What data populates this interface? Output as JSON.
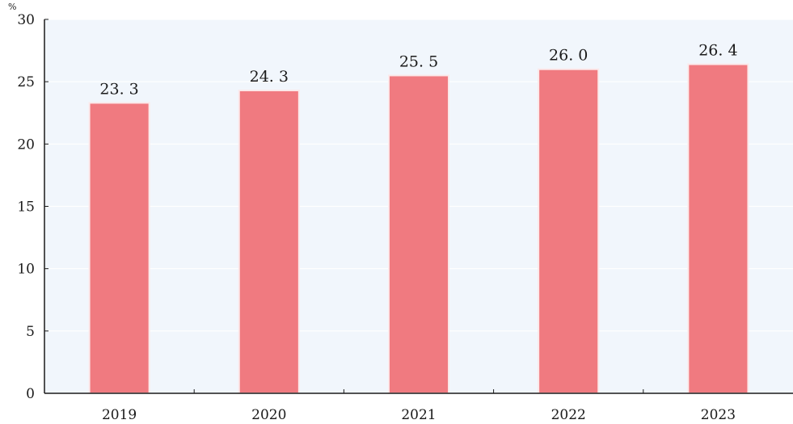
{
  "chart_data": {
    "type": "bar",
    "title": "",
    "xlabel": "",
    "ylabel": "",
    "unit": "%",
    "categories": [
      "2019",
      "2020",
      "2021",
      "2022",
      "2023"
    ],
    "series": [
      {
        "values": [
          23.3,
          24.3,
          25.5,
          26.0,
          26.4
        ],
        "value_labels": [
          "23. 3",
          "24. 3",
          "25. 5",
          "26. 0",
          "26. 4"
        ]
      }
    ],
    "ylim": [
      0,
      30
    ],
    "yticks": [
      0,
      5,
      10,
      15,
      20,
      25,
      30
    ],
    "grid": true,
    "legend": "none",
    "colors": {
      "bar": "#f07a80",
      "bar_edge": "#fbe9ea",
      "plot_background": "#f1f6fc",
      "gridline": "#ffffff",
      "axis": "#1a1a1a",
      "text": "#1a1a1a"
    }
  }
}
